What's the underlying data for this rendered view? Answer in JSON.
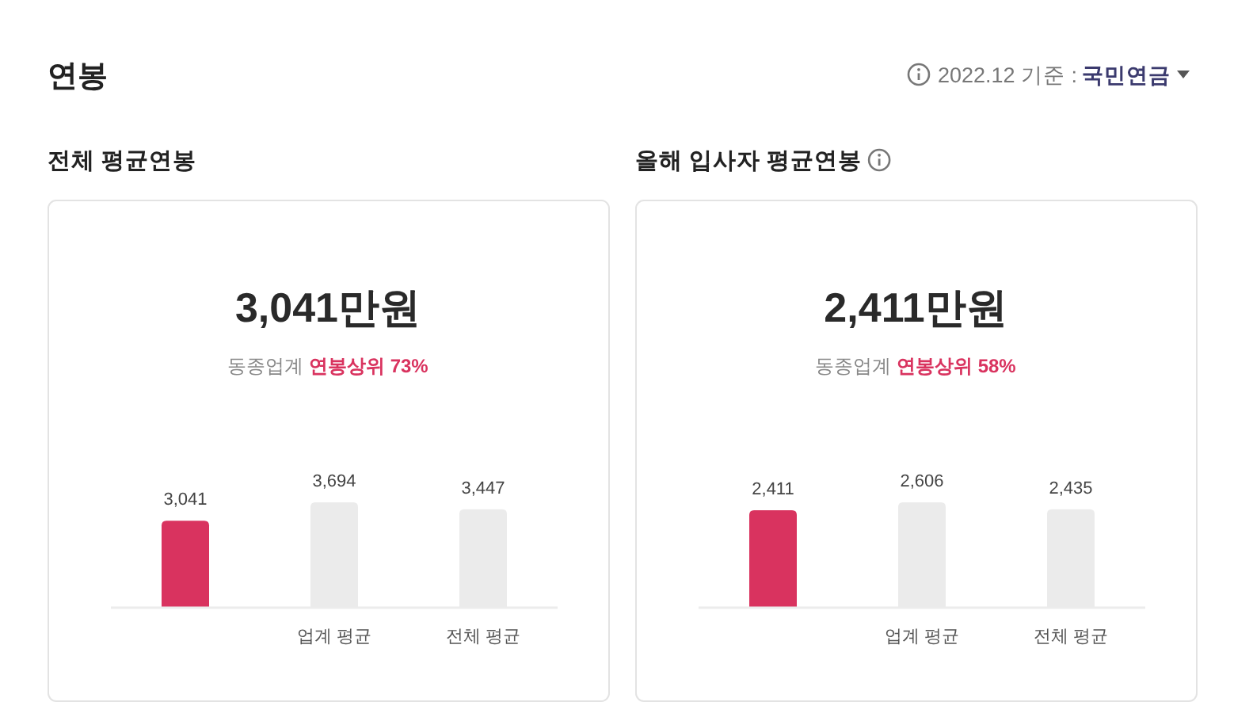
{
  "chart_data": [
    {
      "type": "other",
      "title": "연봉",
      "annotations": [
        "2022.12 기준 :",
        "국민연금"
      ]
    },
    {
      "type": "bar",
      "title": "전체 평균연봉",
      "subtitle": "3,041만원",
      "annotations": [
        "동종업계",
        "연봉상위 73%"
      ],
      "categories": [
        null,
        "업계 평균",
        "전체 평균"
      ],
      "values": [
        3041,
        3694,
        3447
      ],
      "value_labels": [
        "3,041",
        "3,694",
        "3,447"
      ],
      "colors": [
        "#d9335f",
        "#ebebeb",
        "#ebebeb"
      ]
    },
    {
      "type": "bar",
      "title": "올해 입사자 평균연봉",
      "subtitle": "2,411만원",
      "annotations": [
        "동종업계",
        "연봉상위 58%"
      ],
      "categories": [
        null,
        "업계 평균",
        "전체 평균"
      ],
      "values": [
        2411,
        2606,
        2435
      ],
      "value_labels": [
        "2,411",
        "2,606",
        "2,435"
      ],
      "colors": [
        "#d9335f",
        "#ebebeb",
        "#ebebeb"
      ]
    }
  ]
}
